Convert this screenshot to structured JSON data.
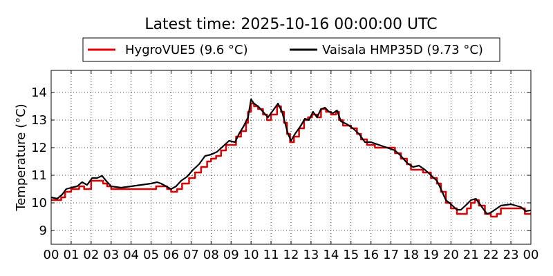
{
  "chart_data": {
    "type": "line",
    "title": "Latest time: 2025-10-16 00:00:00 UTC",
    "xlabel": "",
    "ylabel": "Temperature (°C)",
    "x_tick_labels": [
      "00",
      "01",
      "02",
      "03",
      "04",
      "05",
      "06",
      "07",
      "08",
      "09",
      "10",
      "11",
      "12",
      "13",
      "14",
      "15",
      "16",
      "17",
      "18",
      "19",
      "20",
      "21",
      "22",
      "23",
      "00"
    ],
    "xlim": [
      0,
      24
    ],
    "y_ticks": [
      9,
      10,
      11,
      12,
      13,
      14
    ],
    "ylim": [
      8.5,
      14.8
    ],
    "grid": true,
    "legend_position": "top-center",
    "series": [
      {
        "name": "HygroVUE5 (9.6 °C)",
        "color": "#e00000",
        "step": true,
        "points": [
          [
            0.0,
            10.1
          ],
          [
            0.5,
            10.2
          ],
          [
            0.7,
            10.4
          ],
          [
            1.0,
            10.5
          ],
          [
            1.4,
            10.6
          ],
          [
            1.65,
            10.5
          ],
          [
            2.0,
            10.8
          ],
          [
            2.6,
            10.7
          ],
          [
            2.8,
            10.6
          ],
          [
            3.0,
            10.5
          ],
          [
            3.5,
            10.5
          ],
          [
            4.5,
            10.5
          ],
          [
            5.0,
            10.5
          ],
          [
            5.25,
            10.6
          ],
          [
            5.6,
            10.6
          ],
          [
            5.8,
            10.5
          ],
          [
            6.0,
            10.4
          ],
          [
            6.3,
            10.5
          ],
          [
            6.55,
            10.7
          ],
          [
            6.9,
            10.9
          ],
          [
            7.2,
            11.1
          ],
          [
            7.5,
            11.3
          ],
          [
            7.8,
            11.5
          ],
          [
            8.0,
            11.6
          ],
          [
            8.25,
            11.7
          ],
          [
            8.5,
            11.9
          ],
          [
            8.75,
            12.1
          ],
          [
            9.0,
            12.1
          ],
          [
            9.25,
            12.4
          ],
          [
            9.5,
            12.6
          ],
          [
            9.75,
            12.9
          ],
          [
            9.85,
            13.3
          ],
          [
            10.0,
            13.6
          ],
          [
            10.15,
            13.5
          ],
          [
            10.35,
            13.4
          ],
          [
            10.6,
            13.2
          ],
          [
            10.8,
            13.0
          ],
          [
            11.0,
            13.2
          ],
          [
            11.3,
            13.5
          ],
          [
            11.5,
            13.3
          ],
          [
            11.65,
            12.9
          ],
          [
            11.8,
            12.5
          ],
          [
            11.95,
            12.2
          ],
          [
            12.15,
            12.4
          ],
          [
            12.4,
            12.7
          ],
          [
            12.65,
            13.0
          ],
          [
            12.85,
            13.1
          ],
          [
            13.05,
            13.2
          ],
          [
            13.3,
            13.1
          ],
          [
            13.5,
            13.4
          ],
          [
            13.75,
            13.3
          ],
          [
            14.0,
            13.2
          ],
          [
            14.25,
            13.3
          ],
          [
            14.4,
            13.0
          ],
          [
            14.6,
            12.8
          ],
          [
            15.0,
            12.7
          ],
          [
            15.3,
            12.5
          ],
          [
            15.5,
            12.3
          ],
          [
            15.8,
            12.1
          ],
          [
            16.2,
            12.0
          ],
          [
            16.8,
            12.0
          ],
          [
            17.2,
            11.8
          ],
          [
            17.5,
            11.6
          ],
          [
            17.8,
            11.4
          ],
          [
            18.0,
            11.2
          ],
          [
            18.4,
            11.2
          ],
          [
            18.6,
            11.1
          ],
          [
            19.0,
            10.9
          ],
          [
            19.3,
            10.7
          ],
          [
            19.5,
            10.4
          ],
          [
            19.75,
            10.0
          ],
          [
            20.0,
            9.8
          ],
          [
            20.3,
            9.6
          ],
          [
            20.5,
            9.6
          ],
          [
            20.8,
            9.8
          ],
          [
            21.0,
            10.0
          ],
          [
            21.2,
            10.1
          ],
          [
            21.4,
            9.9
          ],
          [
            21.7,
            9.6
          ],
          [
            22.0,
            9.5
          ],
          [
            22.3,
            9.6
          ],
          [
            22.5,
            9.8
          ],
          [
            23.0,
            9.8
          ],
          [
            23.5,
            9.8
          ],
          [
            23.7,
            9.6
          ],
          [
            24.0,
            9.6
          ]
        ]
      },
      {
        "name": "Vaisala HMP35D (9.73 °C)",
        "color": "#000000",
        "step": false,
        "points": [
          [
            0.0,
            10.2
          ],
          [
            0.3,
            10.15
          ],
          [
            0.55,
            10.3
          ],
          [
            0.75,
            10.5
          ],
          [
            1.0,
            10.55
          ],
          [
            1.3,
            10.6
          ],
          [
            1.55,
            10.75
          ],
          [
            1.8,
            10.65
          ],
          [
            2.05,
            10.9
          ],
          [
            2.3,
            10.9
          ],
          [
            2.55,
            10.98
          ],
          [
            2.75,
            10.8
          ],
          [
            3.0,
            10.6
          ],
          [
            3.5,
            10.55
          ],
          [
            4.0,
            10.6
          ],
          [
            4.5,
            10.65
          ],
          [
            5.0,
            10.7
          ],
          [
            5.3,
            10.75
          ],
          [
            5.5,
            10.7
          ],
          [
            5.75,
            10.6
          ],
          [
            6.0,
            10.5
          ],
          [
            6.25,
            10.6
          ],
          [
            6.5,
            10.8
          ],
          [
            6.8,
            10.95
          ],
          [
            7.1,
            11.2
          ],
          [
            7.4,
            11.4
          ],
          [
            7.7,
            11.7
          ],
          [
            8.0,
            11.75
          ],
          [
            8.3,
            11.85
          ],
          [
            8.6,
            12.05
          ],
          [
            8.9,
            12.25
          ],
          [
            9.2,
            12.2
          ],
          [
            9.4,
            12.5
          ],
          [
            9.65,
            12.8
          ],
          [
            9.85,
            13.1
          ],
          [
            10.0,
            13.75
          ],
          [
            10.15,
            13.6
          ],
          [
            10.35,
            13.5
          ],
          [
            10.6,
            13.3
          ],
          [
            10.85,
            13.1
          ],
          [
            11.1,
            13.35
          ],
          [
            11.35,
            13.6
          ],
          [
            11.55,
            13.3
          ],
          [
            11.7,
            12.9
          ],
          [
            11.85,
            12.5
          ],
          [
            12.0,
            12.25
          ],
          [
            12.2,
            12.5
          ],
          [
            12.45,
            12.75
          ],
          [
            12.7,
            13.05
          ],
          [
            12.9,
            13.0
          ],
          [
            13.1,
            13.3
          ],
          [
            13.3,
            13.1
          ],
          [
            13.5,
            13.4
          ],
          [
            13.7,
            13.45
          ],
          [
            13.9,
            13.3
          ],
          [
            14.1,
            13.25
          ],
          [
            14.3,
            13.35
          ],
          [
            14.5,
            12.95
          ],
          [
            14.8,
            12.85
          ],
          [
            15.1,
            12.7
          ],
          [
            15.4,
            12.5
          ],
          [
            15.7,
            12.2
          ],
          [
            16.0,
            12.2
          ],
          [
            16.4,
            12.1
          ],
          [
            16.8,
            12.0
          ],
          [
            17.2,
            11.9
          ],
          [
            17.5,
            11.7
          ],
          [
            17.8,
            11.45
          ],
          [
            18.1,
            11.3
          ],
          [
            18.4,
            11.35
          ],
          [
            18.7,
            11.2
          ],
          [
            19.0,
            11.0
          ],
          [
            19.3,
            10.8
          ],
          [
            19.5,
            10.5
          ],
          [
            19.75,
            10.1
          ],
          [
            20.0,
            9.95
          ],
          [
            20.3,
            9.75
          ],
          [
            20.5,
            9.75
          ],
          [
            20.8,
            9.95
          ],
          [
            21.0,
            10.1
          ],
          [
            21.25,
            10.15
          ],
          [
            21.5,
            9.9
          ],
          [
            21.8,
            9.6
          ],
          [
            22.0,
            9.65
          ],
          [
            22.3,
            9.8
          ],
          [
            22.5,
            9.9
          ],
          [
            23.0,
            9.95
          ],
          [
            23.5,
            9.85
          ],
          [
            23.75,
            9.7
          ],
          [
            24.0,
            9.73
          ]
        ]
      }
    ]
  }
}
